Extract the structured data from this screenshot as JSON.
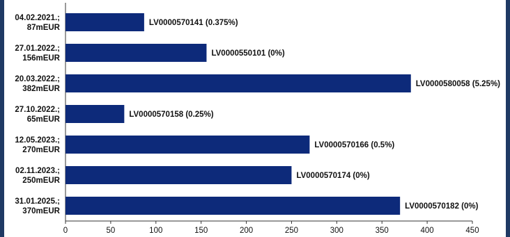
{
  "chart_data": {
    "type": "bar",
    "orientation": "horizontal",
    "categories": [
      [
        "04.02.2021.;",
        "87mEUR"
      ],
      [
        "27.01.2022.;",
        "156mEUR"
      ],
      [
        "20.03.2022.;",
        "382mEUR"
      ],
      [
        "27.10.2022.;",
        "65mEUR"
      ],
      [
        "12.05.2023.;",
        "270mEUR"
      ],
      [
        "02.11.2023.;",
        "250mEUR"
      ],
      [
        "31.01.2025.;",
        "370mEUR"
      ]
    ],
    "values": [
      87,
      156,
      382,
      65,
      270,
      250,
      370
    ],
    "data_labels": [
      "LV0000570141 (0.375%)",
      "LV0000550101 (0%)",
      "LV0000580058 (5.25%)",
      "LV0000570158 (0.25%)",
      "LV0000570166 (0.5%)",
      "LV0000570174 (0%)",
      "LV0000570182 (0%)"
    ],
    "xlim": [
      0,
      450
    ],
    "xticks": [
      0,
      50,
      100,
      150,
      200,
      250,
      300,
      350,
      400,
      450
    ],
    "bar_color": "#0d2a7a",
    "grid": false,
    "title": "",
    "xlabel": "",
    "ylabel": ""
  }
}
